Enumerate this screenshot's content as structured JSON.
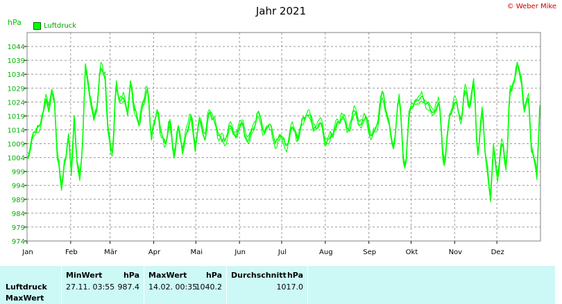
{
  "header": {
    "title": "Jahr 2021",
    "copyright": "© Weber Mike",
    "unit": "hPa",
    "legend_label": "Luftdruck"
  },
  "chart_data": {
    "type": "line",
    "title": "Jahr 2021",
    "ylabel": "hPa",
    "ylim": [
      974,
      1049
    ],
    "yticks": [
      974,
      979,
      984,
      989,
      994,
      999,
      1004,
      1009,
      1014,
      1019,
      1024,
      1029,
      1034,
      1039,
      1044
    ],
    "months": [
      "Jan",
      "Feb",
      "Mär",
      "Apr",
      "Mai",
      "Jun",
      "Jul",
      "Aug",
      "Sep",
      "Okt",
      "Nov",
      "Dez"
    ],
    "grid": true,
    "legend_position": "top-left",
    "series": [
      {
        "name": "Luftdruck",
        "color": "#00ff00",
        "x_day": [
          0,
          4,
          8,
          11,
          13,
          15,
          17,
          19,
          21,
          24,
          27,
          29,
          31,
          33,
          35,
          37,
          39,
          41,
          43,
          45,
          47,
          49,
          52,
          55,
          57,
          60,
          63,
          65,
          68,
          71,
          73,
          76,
          79,
          82,
          85,
          88,
          90,
          92,
          95,
          98,
          101,
          104,
          107,
          110,
          113,
          116,
          119,
          122,
          126,
          129,
          132,
          136,
          140,
          144,
          148,
          152,
          156,
          160,
          164,
          168,
          172,
          176,
          180,
          184,
          188,
          192,
          196,
          200,
          204,
          208,
          212,
          216,
          220,
          224,
          228,
          232,
          236,
          240,
          244,
          248,
          252,
          256,
          260,
          264,
          268,
          272,
          276,
          280,
          284,
          288,
          292,
          296,
          300,
          304,
          308,
          311,
          314,
          317,
          320,
          323,
          326,
          329,
          331,
          334,
          337,
          340,
          343,
          346,
          348,
          350,
          353,
          356,
          358,
          360,
          362,
          364
        ],
        "values": [
          1004,
          1013,
          1015,
          1020,
          1026,
          1021,
          1028,
          1024,
          1005,
          994,
          1004,
          1012,
          999,
          1018,
          1003,
          997,
          1009,
          1038,
          1030,
          1024,
          1018,
          1022,
          1037,
          1033,
          1014,
          1005,
          1030,
          1024,
          1026,
          1020,
          1031,
          1021,
          1016,
          1024,
          1029,
          1011,
          1017,
          1021,
          1012,
          1009,
          1017,
          1005,
          1015,
          1007,
          1014,
          1019,
          1008,
          1018,
          1011,
          1021,
          1018,
          1012,
          1010,
          1015,
          1012,
          1017,
          1010,
          1014,
          1020,
          1013,
          1016,
          1009,
          1012,
          1008,
          1015,
          1011,
          1018,
          1020,
          1014,
          1017,
          1009,
          1012,
          1016,
          1019,
          1014,
          1021,
          1016,
          1019,
          1012,
          1015,
          1027,
          1018,
          1008,
          1025,
          1000,
          1022,
          1024,
          1026,
          1023,
          1020,
          1024,
          1002,
          1019,
          1025,
          1017,
          1029,
          1022,
          1031,
          1005,
          1021,
          1002,
          990,
          1008,
          997,
          1010,
          1000,
          1028,
          1032,
          1038,
          1034,
          1022,
          1026,
          1008,
          1004,
          998,
          1022
        ]
      }
    ],
    "stats": {
      "row_labels": [
        "Luftdruck",
        "MaxWert"
      ],
      "min_header": "MinWert",
      "min_unit": "hPa",
      "min_time": "27.11.  03:55",
      "min_value": "987.4",
      "max_header": "MaxWert",
      "max_unit": "hPa",
      "max_time": "14.02.  00:35",
      "max_value": "1040.2",
      "avg_header": "Durchschnitt",
      "avg_unit": "hPa",
      "avg_value": "1017.0"
    }
  }
}
